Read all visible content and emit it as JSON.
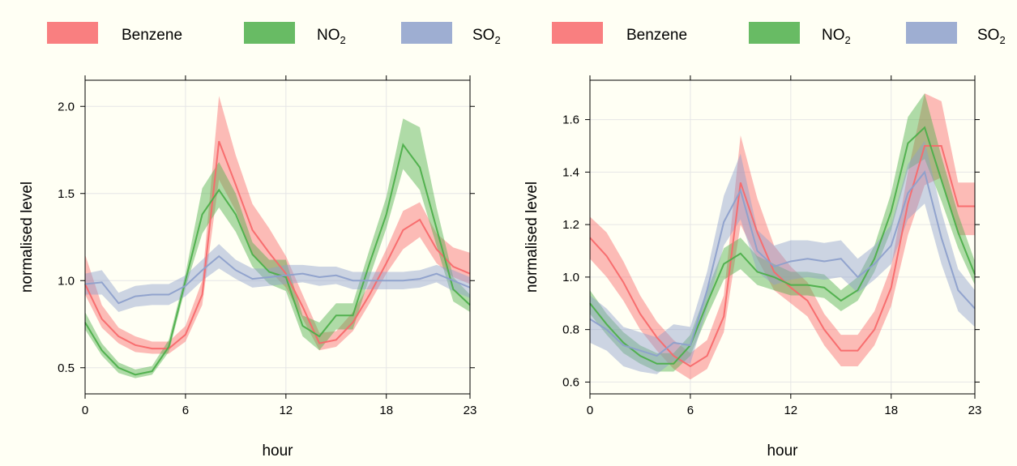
{
  "chart_data": [
    {
      "type": "line",
      "xlabel": "hour",
      "ylabel": "normalised level",
      "xlim": [
        0,
        23
      ],
      "ylim": [
        0.35,
        2.15
      ],
      "xticks": [
        0,
        6,
        12,
        18,
        23
      ],
      "yticks": [
        0.5,
        1.0,
        1.5,
        2.0
      ],
      "ytick_labels": [
        "0.5",
        "1.0",
        "1.5",
        "2.0"
      ],
      "grid": true,
      "legend": "top",
      "x": [
        0,
        1,
        2,
        3,
        4,
        5,
        6,
        7,
        8,
        9,
        10,
        11,
        12,
        13,
        14,
        15,
        16,
        17,
        18,
        19,
        20,
        21,
        22,
        23
      ],
      "series": [
        {
          "name": "Benzene",
          "name_parts": [
            "Benzene",
            ""
          ],
          "color": "#f8696b",
          "values": [
            0.98,
            0.78,
            0.68,
            0.63,
            0.61,
            0.61,
            0.69,
            0.92,
            1.8,
            1.55,
            1.29,
            1.16,
            1.04,
            0.85,
            0.64,
            0.66,
            0.76,
            0.92,
            1.1,
            1.29,
            1.35,
            1.18,
            1.08,
            1.04
          ],
          "lower": [
            0.92,
            0.73,
            0.64,
            0.59,
            0.58,
            0.58,
            0.65,
            0.86,
            1.58,
            1.4,
            1.15,
            1.06,
            0.96,
            0.78,
            0.6,
            0.62,
            0.71,
            0.87,
            1.04,
            1.18,
            1.25,
            1.1,
            1.02,
            0.98
          ],
          "upper": [
            1.15,
            0.86,
            0.73,
            0.68,
            0.65,
            0.65,
            0.74,
            1.0,
            2.06,
            1.72,
            1.44,
            1.3,
            1.14,
            0.92,
            0.7,
            0.71,
            0.82,
            0.98,
            1.18,
            1.4,
            1.45,
            1.27,
            1.19,
            1.16
          ]
        },
        {
          "name": "NO2",
          "name_parts": [
            "NO",
            "2"
          ],
          "color": "#4daf4a",
          "values": [
            0.76,
            0.6,
            0.5,
            0.46,
            0.48,
            0.62,
            1.0,
            1.38,
            1.52,
            1.38,
            1.15,
            1.05,
            1.02,
            0.74,
            0.68,
            0.8,
            0.8,
            1.1,
            1.38,
            1.78,
            1.65,
            1.3,
            0.95,
            0.86
          ],
          "lower": [
            0.72,
            0.57,
            0.47,
            0.44,
            0.46,
            0.59,
            0.96,
            1.27,
            1.42,
            1.28,
            1.08,
            0.98,
            0.94,
            0.68,
            0.6,
            0.72,
            0.72,
            1.02,
            1.3,
            1.64,
            1.52,
            1.2,
            0.88,
            0.82
          ],
          "upper": [
            0.82,
            0.64,
            0.53,
            0.49,
            0.51,
            0.66,
            1.04,
            1.53,
            1.68,
            1.5,
            1.22,
            1.12,
            1.12,
            0.8,
            0.76,
            0.87,
            0.87,
            1.18,
            1.48,
            1.93,
            1.88,
            1.42,
            1.02,
            0.92
          ]
        },
        {
          "name": "SO2",
          "name_parts": [
            "SO",
            "2"
          ],
          "color": "#8da0cb",
          "values": [
            0.98,
            0.99,
            0.87,
            0.91,
            0.92,
            0.92,
            0.97,
            1.06,
            1.14,
            1.06,
            1.01,
            1.02,
            1.03,
            1.04,
            1.02,
            1.03,
            1.0,
            1.0,
            1.0,
            1.0,
            1.01,
            1.04,
            1.0,
            0.96
          ],
          "lower": [
            0.92,
            0.92,
            0.82,
            0.85,
            0.86,
            0.86,
            0.91,
            1.0,
            1.07,
            1.01,
            0.96,
            0.97,
            0.98,
            0.99,
            0.97,
            0.98,
            0.95,
            0.95,
            0.95,
            0.95,
            0.96,
            0.99,
            0.94,
            0.9
          ],
          "upper": [
            1.04,
            1.06,
            0.93,
            0.97,
            0.98,
            0.98,
            1.03,
            1.12,
            1.21,
            1.12,
            1.07,
            1.07,
            1.09,
            1.09,
            1.08,
            1.08,
            1.05,
            1.05,
            1.05,
            1.05,
            1.06,
            1.09,
            1.06,
            1.02
          ]
        }
      ]
    },
    {
      "type": "line",
      "xlabel": "hour",
      "ylabel": "normalised level",
      "xlim": [
        0,
        23
      ],
      "ylim": [
        0.555,
        1.75
      ],
      "xticks": [
        0,
        6,
        12,
        18,
        23
      ],
      "yticks": [
        0.6,
        0.8,
        1.0,
        1.2,
        1.4,
        1.6
      ],
      "ytick_labels": [
        "0.6",
        "0.8",
        "1.0",
        "1.2",
        "1.4",
        "1.6"
      ],
      "grid": true,
      "legend": "top",
      "x": [
        0,
        1,
        2,
        3,
        4,
        5,
        6,
        7,
        8,
        9,
        10,
        11,
        12,
        13,
        14,
        15,
        16,
        17,
        18,
        19,
        20,
        21,
        22,
        23
      ],
      "series": [
        {
          "name": "Benzene",
          "name_parts": [
            "Benzene",
            ""
          ],
          "color": "#f8696b",
          "values": [
            1.15,
            1.08,
            0.98,
            0.86,
            0.77,
            0.7,
            0.66,
            0.7,
            0.85,
            1.36,
            1.17,
            1.02,
            0.96,
            0.91,
            0.8,
            0.72,
            0.72,
            0.8,
            0.96,
            1.28,
            1.5,
            1.5,
            1.27,
            1.27
          ],
          "lower": [
            1.07,
            1.0,
            0.91,
            0.8,
            0.72,
            0.65,
            0.61,
            0.65,
            0.79,
            1.2,
            1.07,
            0.95,
            0.9,
            0.85,
            0.74,
            0.66,
            0.66,
            0.74,
            0.89,
            1.16,
            1.35,
            1.38,
            1.16,
            1.16
          ],
          "upper": [
            1.23,
            1.17,
            1.06,
            0.93,
            0.83,
            0.76,
            0.71,
            0.76,
            0.93,
            1.54,
            1.3,
            1.12,
            1.04,
            0.98,
            0.86,
            0.78,
            0.78,
            0.87,
            1.04,
            1.4,
            1.7,
            1.67,
            1.36,
            1.36
          ]
        },
        {
          "name": "NO2",
          "name_parts": [
            "NO",
            "2"
          ],
          "color": "#4daf4a",
          "values": [
            0.9,
            0.82,
            0.75,
            0.7,
            0.67,
            0.67,
            0.74,
            0.9,
            1.05,
            1.09,
            1.02,
            1.0,
            0.97,
            0.97,
            0.96,
            0.91,
            0.95,
            1.07,
            1.25,
            1.51,
            1.57,
            1.37,
            1.17,
            1.01
          ],
          "lower": [
            0.86,
            0.78,
            0.71,
            0.67,
            0.64,
            0.64,
            0.7,
            0.85,
            0.99,
            1.03,
            0.97,
            0.95,
            0.93,
            0.93,
            0.92,
            0.87,
            0.91,
            1.02,
            1.18,
            1.41,
            1.45,
            1.29,
            1.11,
            0.97
          ],
          "upper": [
            0.95,
            0.86,
            0.79,
            0.74,
            0.71,
            0.71,
            0.78,
            0.95,
            1.11,
            1.15,
            1.08,
            1.05,
            1.02,
            1.02,
            1.01,
            0.95,
            1.0,
            1.12,
            1.32,
            1.61,
            1.7,
            1.46,
            1.24,
            1.06
          ]
        },
        {
          "name": "SO2",
          "name_parts": [
            "SO",
            "2"
          ],
          "color": "#8da0cb",
          "values": [
            0.84,
            0.8,
            0.74,
            0.72,
            0.7,
            0.75,
            0.74,
            0.95,
            1.21,
            1.33,
            1.1,
            1.04,
            1.06,
            1.07,
            1.06,
            1.07,
            1.0,
            1.05,
            1.12,
            1.32,
            1.4,
            1.15,
            0.95,
            0.88
          ],
          "lower": [
            0.75,
            0.72,
            0.66,
            0.64,
            0.63,
            0.68,
            0.67,
            0.88,
            1.12,
            1.22,
            1.02,
            0.97,
            0.99,
            1.0,
            0.99,
            1.0,
            0.94,
            0.99,
            1.05,
            1.22,
            1.28,
            1.05,
            0.87,
            0.81
          ],
          "upper": [
            0.93,
            0.88,
            0.81,
            0.79,
            0.77,
            0.82,
            0.81,
            1.02,
            1.31,
            1.47,
            1.18,
            1.12,
            1.14,
            1.14,
            1.13,
            1.14,
            1.07,
            1.12,
            1.2,
            1.43,
            1.52,
            1.25,
            1.03,
            0.95
          ]
        }
      ]
    }
  ]
}
